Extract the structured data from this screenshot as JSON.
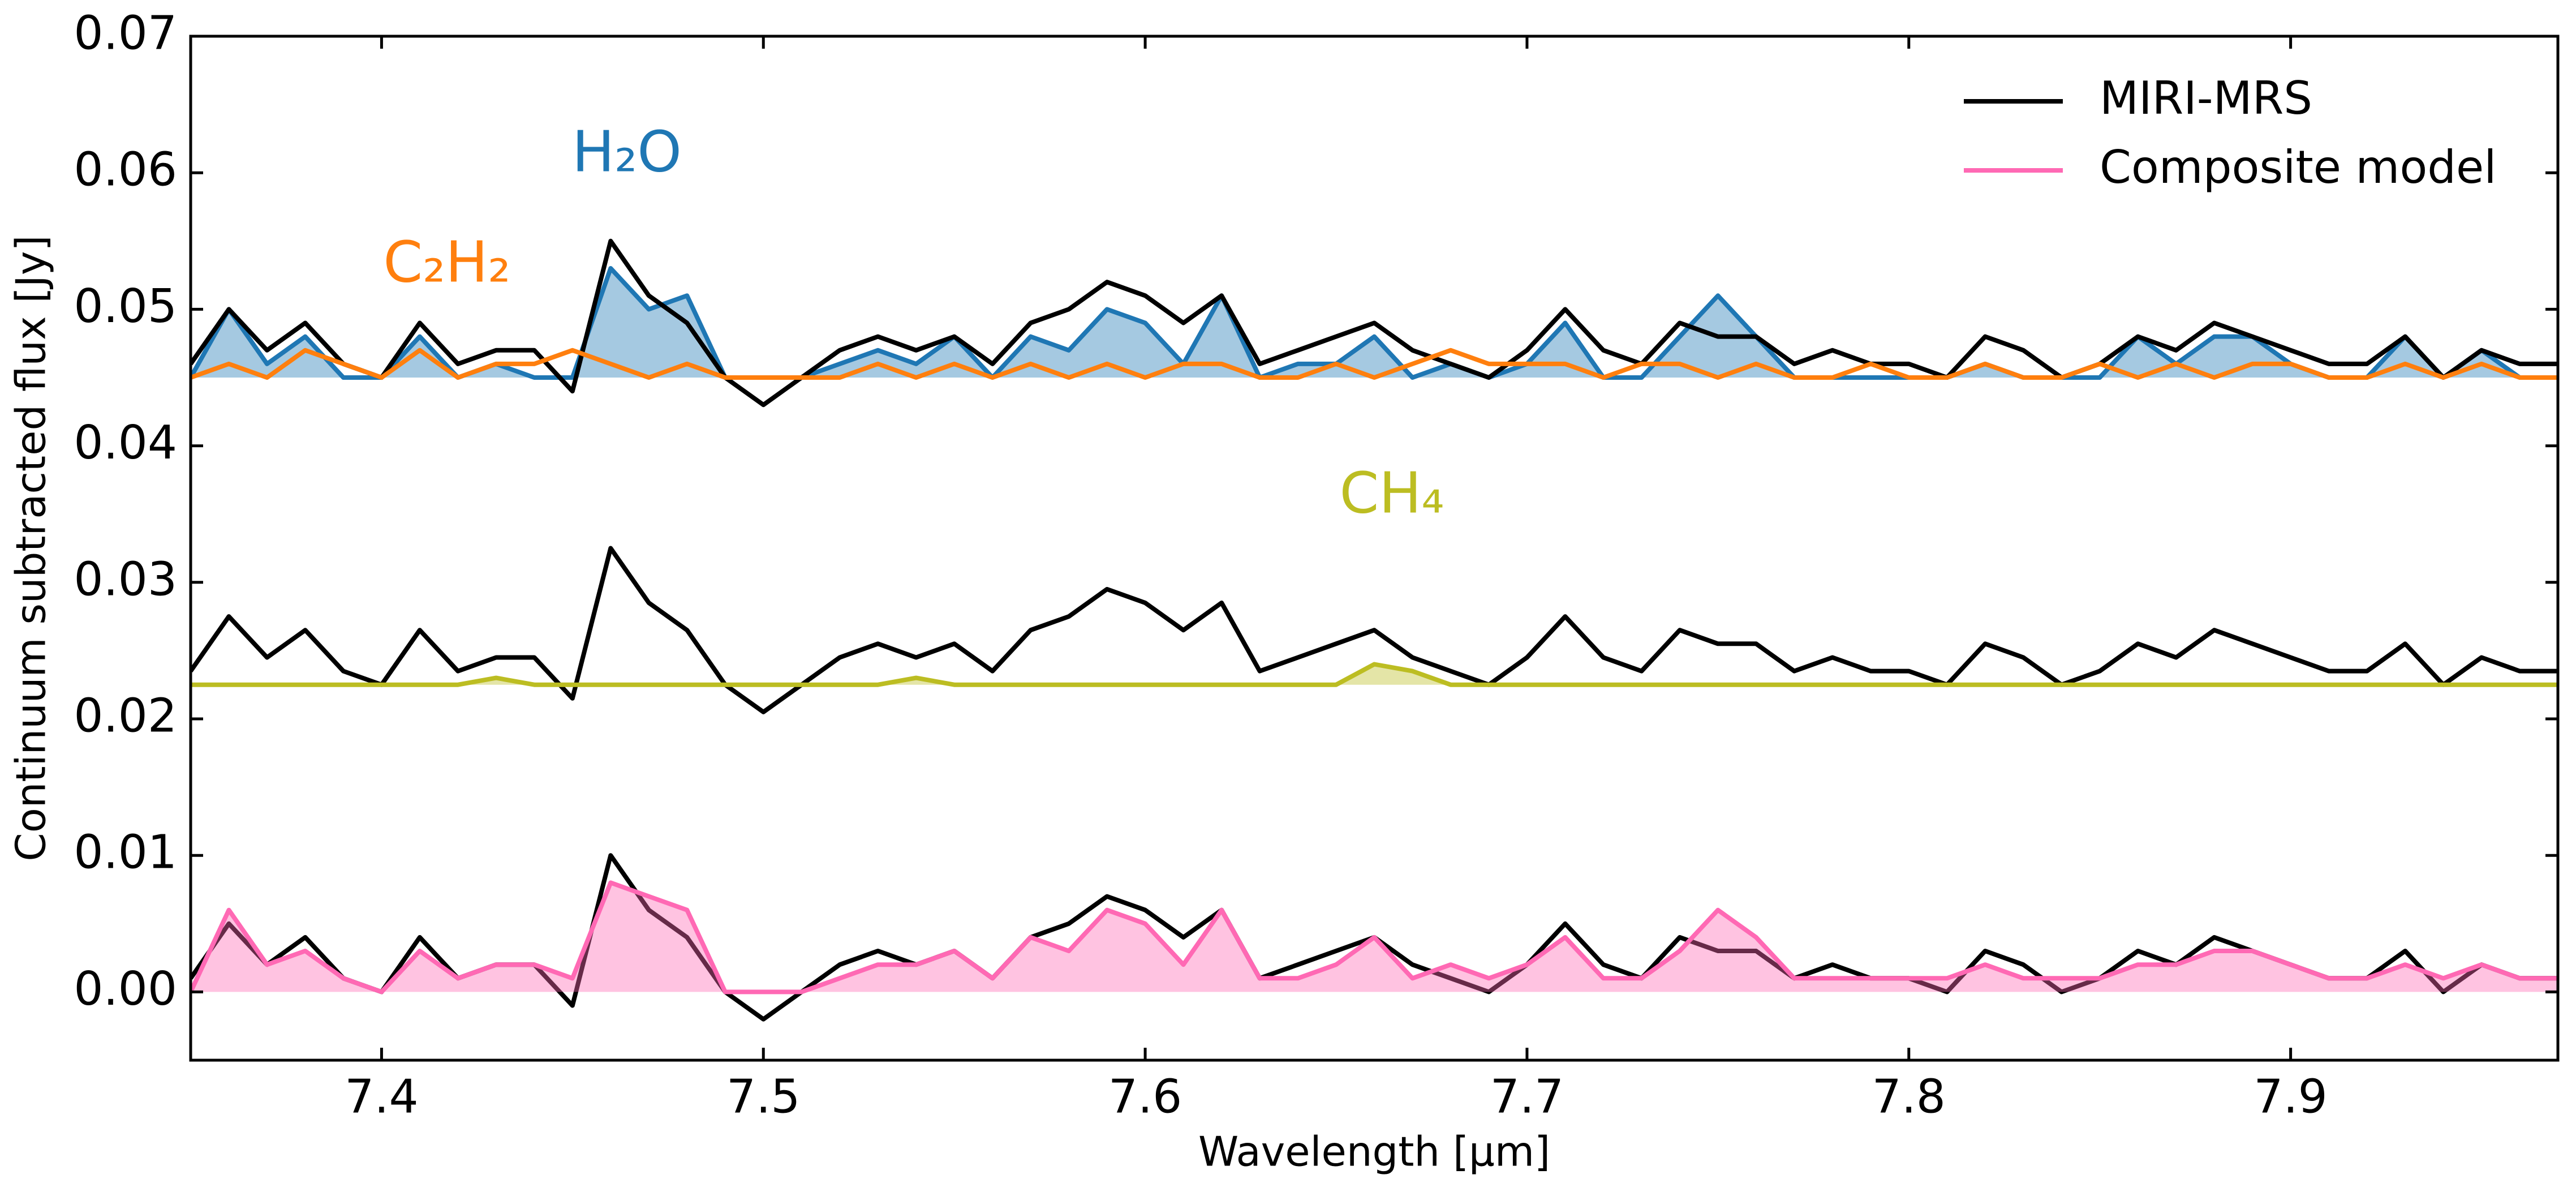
{
  "chart_data": {
    "type": "line",
    "xlabel": "Wavelength [μm]",
    "ylabel": "Continuum subtracted flux [Jy]",
    "xlim": [
      7.35,
      7.97
    ],
    "ylim": [
      -0.005,
      0.07
    ],
    "xticks": [
      7.4,
      7.5,
      7.6,
      7.7,
      7.8,
      7.9
    ],
    "yticks": [
      {
        "value": 0,
        "label": "0.00"
      },
      {
        "value": 0.01,
        "label": "0.01"
      },
      {
        "value": 0.02,
        "label": "0.02"
      },
      {
        "value": 0.03,
        "label": "0.03"
      },
      {
        "value": 0.04,
        "label": "0.04"
      },
      {
        "value": 0.05,
        "label": "0.05"
      },
      {
        "value": 0.06,
        "label": "0.06"
      },
      {
        "value": 0.07,
        "label": "0.07"
      }
    ],
    "legend_loc": "upper right",
    "x": [
      7.35,
      7.36,
      7.37,
      7.38,
      7.39,
      7.4,
      7.41,
      7.42,
      7.43,
      7.44,
      7.45,
      7.46,
      7.47,
      7.48,
      7.49,
      7.5,
      7.51,
      7.52,
      7.53,
      7.54,
      7.55,
      7.56,
      7.57,
      7.58,
      7.59,
      7.6,
      7.61,
      7.62,
      7.63,
      7.64,
      7.65,
      7.66,
      7.67,
      7.68,
      7.69,
      7.7,
      7.71,
      7.72,
      7.73,
      7.74,
      7.75,
      7.76,
      7.77,
      7.78,
      7.79,
      7.8,
      7.81,
      7.82,
      7.83,
      7.84,
      7.85,
      7.86,
      7.87,
      7.88,
      7.89,
      7.9,
      7.91,
      7.92,
      7.93,
      7.94,
      7.95,
      7.96,
      7.97
    ],
    "series": [
      {
        "name": "H₂O",
        "color": "#1f77b4",
        "fill": true,
        "legend": false,
        "values": [
          0.045,
          0.05,
          0.046,
          0.048,
          0.045,
          0.045,
          0.048,
          0.045,
          0.046,
          0.045,
          0.045,
          0.053,
          0.05,
          0.051,
          0.045,
          0.045,
          0.045,
          0.046,
          0.047,
          0.046,
          0.048,
          0.045,
          0.048,
          0.047,
          0.05,
          0.049,
          0.046,
          0.051,
          0.045,
          0.046,
          0.046,
          0.048,
          0.045,
          0.046,
          0.045,
          0.046,
          0.049,
          0.045,
          0.045,
          0.048,
          0.051,
          0.048,
          0.045,
          0.045,
          0.045,
          0.045,
          0.045,
          0.046,
          0.045,
          0.045,
          0.045,
          0.048,
          0.046,
          0.048,
          0.048,
          0.046,
          0.045,
          0.045,
          0.048,
          0.045,
          0.047,
          0.045,
          0.045
        ]
      },
      {
        "name": "MIRI-MRS",
        "color": "#000000",
        "fill": false,
        "legend": true,
        "values": [
          0.046,
          0.05,
          0.047,
          0.049,
          0.046,
          0.045,
          0.049,
          0.046,
          0.047,
          0.047,
          0.044,
          0.055,
          0.051,
          0.049,
          0.045,
          0.043,
          0.045,
          0.047,
          0.048,
          0.047,
          0.048,
          0.046,
          0.049,
          0.05,
          0.052,
          0.051,
          0.049,
          0.051,
          0.046,
          0.047,
          0.048,
          0.049,
          0.047,
          0.046,
          0.045,
          0.047,
          0.05,
          0.047,
          0.046,
          0.049,
          0.048,
          0.048,
          0.046,
          0.047,
          0.046,
          0.046,
          0.045,
          0.048,
          0.047,
          0.045,
          0.046,
          0.048,
          0.047,
          0.049,
          0.048,
          0.047,
          0.046,
          0.046,
          0.048,
          0.045,
          0.047,
          0.046,
          0.046
        ]
      },
      {
        "name": "C₂H₂",
        "color": "#ff7f0e",
        "fill": false,
        "legend": false,
        "values": [
          0.045,
          0.046,
          0.045,
          0.047,
          0.046,
          0.045,
          0.047,
          0.045,
          0.046,
          0.046,
          0.047,
          0.046,
          0.045,
          0.046,
          0.045,
          0.045,
          0.045,
          0.045,
          0.046,
          0.045,
          0.046,
          0.045,
          0.046,
          0.045,
          0.046,
          0.045,
          0.046,
          0.046,
          0.045,
          0.045,
          0.046,
          0.045,
          0.046,
          0.047,
          0.046,
          0.046,
          0.046,
          0.045,
          0.046,
          0.046,
          0.045,
          0.046,
          0.045,
          0.045,
          0.046,
          0.045,
          0.045,
          0.046,
          0.045,
          0.045,
          0.046,
          0.045,
          0.046,
          0.045,
          0.046,
          0.046,
          0.045,
          0.045,
          0.046,
          0.045,
          0.046,
          0.045,
          0.045
        ]
      },
      {
        "name": "MIRI-MRS",
        "color": "#000000",
        "fill": false,
        "legend": false,
        "values": [
          0.0235,
          0.0275,
          0.0245,
          0.0265,
          0.0235,
          0.0225,
          0.0265,
          0.0235,
          0.0245,
          0.0245,
          0.0215,
          0.0325,
          0.0285,
          0.0265,
          0.0225,
          0.0205,
          0.0225,
          0.0245,
          0.0255,
          0.0245,
          0.0255,
          0.0235,
          0.0265,
          0.0275,
          0.0295,
          0.0285,
          0.0265,
          0.0285,
          0.0235,
          0.0245,
          0.0255,
          0.0265,
          0.0245,
          0.0235,
          0.0225,
          0.0245,
          0.0275,
          0.0245,
          0.0235,
          0.0265,
          0.0255,
          0.0255,
          0.0235,
          0.0245,
          0.0235,
          0.0235,
          0.0225,
          0.0255,
          0.0245,
          0.0225,
          0.0235,
          0.0255,
          0.0245,
          0.0265,
          0.0255,
          0.0245,
          0.0235,
          0.0235,
          0.0255,
          0.0225,
          0.0245,
          0.0235,
          0.0235
        ]
      },
      {
        "name": "CH₄",
        "color": "#bcbd22",
        "fill": true,
        "legend": false,
        "values": [
          0.0225,
          0.0225,
          0.0225,
          0.0225,
          0.0225,
          0.0225,
          0.0225,
          0.0225,
          0.023,
          0.0225,
          0.0225,
          0.0225,
          0.0225,
          0.0225,
          0.0225,
          0.0225,
          0.0225,
          0.0225,
          0.0225,
          0.023,
          0.0225,
          0.0225,
          0.0225,
          0.0225,
          0.0225,
          0.0225,
          0.0225,
          0.0225,
          0.0225,
          0.0225,
          0.0225,
          0.024,
          0.0235,
          0.0225,
          0.0225,
          0.0225,
          0.0225,
          0.0225,
          0.0225,
          0.0225,
          0.0225,
          0.0225,
          0.0225,
          0.0225,
          0.0225,
          0.0225,
          0.0225,
          0.0225,
          0.0225,
          0.0225,
          0.0225,
          0.0225,
          0.0225,
          0.0225,
          0.0225,
          0.0225,
          0.0225,
          0.0225,
          0.0225,
          0.0225,
          0.0225,
          0.0225,
          0.0225
        ]
      },
      {
        "name": "MIRI-MRS",
        "color": "#000000",
        "fill": false,
        "legend": false,
        "values": [
          0.001,
          0.005,
          0.002,
          0.004,
          0.001,
          0.0,
          0.004,
          0.001,
          0.002,
          0.002,
          -0.001,
          0.01,
          0.006,
          0.004,
          0.0,
          -0.002,
          0.0,
          0.002,
          0.003,
          0.002,
          0.003,
          0.001,
          0.004,
          0.005,
          0.007,
          0.006,
          0.004,
          0.006,
          0.001,
          0.002,
          0.003,
          0.004,
          0.002,
          0.001,
          0.0,
          0.002,
          0.005,
          0.002,
          0.001,
          0.004,
          0.003,
          0.003,
          0.001,
          0.002,
          0.001,
          0.001,
          0.0,
          0.003,
          0.002,
          0.0,
          0.001,
          0.003,
          0.002,
          0.004,
          0.003,
          0.002,
          0.001,
          0.001,
          0.003,
          0.0,
          0.002,
          0.001,
          0.001
        ]
      },
      {
        "name": "Composite model",
        "color": "#ff69b4",
        "fill": true,
        "legend": true,
        "values": [
          0.0,
          0.006,
          0.002,
          0.003,
          0.001,
          0.0,
          0.003,
          0.001,
          0.002,
          0.002,
          0.001,
          0.008,
          0.007,
          0.006,
          0.0,
          0.0,
          0.0,
          0.001,
          0.002,
          0.002,
          0.003,
          0.001,
          0.004,
          0.003,
          0.006,
          0.005,
          0.002,
          0.006,
          0.001,
          0.001,
          0.002,
          0.004,
          0.001,
          0.002,
          0.001,
          0.002,
          0.004,
          0.001,
          0.001,
          0.003,
          0.006,
          0.004,
          0.001,
          0.001,
          0.001,
          0.001,
          0.001,
          0.002,
          0.001,
          0.001,
          0.001,
          0.002,
          0.002,
          0.003,
          0.003,
          0.002,
          0.001,
          0.001,
          0.002,
          0.001,
          0.002,
          0.001,
          0.001
        ]
      }
    ],
    "annotations": [
      {
        "text": "H₂O",
        "color": "#1f77b4"
      },
      {
        "text": "C₂H₂",
        "color": "#ff7f0e"
      },
      {
        "text": "CH₄",
        "color": "#bcbd22"
      }
    ]
  }
}
